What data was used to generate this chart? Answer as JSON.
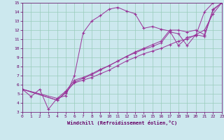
{
  "xlabel": "Windchill (Refroidissement éolien,°C)",
  "bg_color": "#cce8ee",
  "line_color": "#993399",
  "grid_color": "#99ccbb",
  "xlim": [
    0,
    23
  ],
  "ylim": [
    3,
    15
  ],
  "xticks": [
    0,
    1,
    2,
    3,
    4,
    5,
    6,
    7,
    8,
    9,
    10,
    11,
    12,
    13,
    14,
    15,
    16,
    17,
    18,
    19,
    20,
    21,
    22,
    23
  ],
  "yticks": [
    3,
    4,
    5,
    6,
    7,
    8,
    9,
    10,
    11,
    12,
    13,
    14,
    15
  ],
  "line1_x": [
    0,
    1,
    2,
    3,
    4,
    5,
    6,
    7,
    8,
    9,
    10,
    11,
    12,
    13,
    14,
    15,
    16,
    17,
    18,
    19,
    20,
    21,
    22
  ],
  "line1_y": [
    5.5,
    4.7,
    5.5,
    3.3,
    4.5,
    4.8,
    7.0,
    11.7,
    13.0,
    13.6,
    14.3,
    14.5,
    14.1,
    13.8,
    12.2,
    12.4,
    12.1,
    11.9,
    10.3,
    11.2,
    11.4,
    14.0,
    15.0
  ],
  "line2_x": [
    0,
    4,
    5,
    6,
    7,
    8,
    9,
    10,
    11,
    12,
    13,
    14,
    15,
    16,
    17,
    18,
    19,
    20,
    21,
    22,
    23
  ],
  "line2_y": [
    5.5,
    4.3,
    5.2,
    6.2,
    6.5,
    6.8,
    7.2,
    7.6,
    8.1,
    8.6,
    9.0,
    9.4,
    9.7,
    10.0,
    10.4,
    10.8,
    11.0,
    11.5,
    12.0,
    13.8,
    15.0
  ],
  "line3_x": [
    0,
    4,
    5,
    6,
    7,
    8,
    9,
    10,
    11,
    12,
    13,
    14,
    15,
    16,
    17,
    18,
    19,
    20,
    21,
    22,
    23
  ],
  "line3_y": [
    5.5,
    4.5,
    5.3,
    6.5,
    6.8,
    7.2,
    7.7,
    8.1,
    8.6,
    9.1,
    9.5,
    9.9,
    10.2,
    10.6,
    11.8,
    11.6,
    10.3,
    11.5,
    11.3,
    14.2,
    15.0
  ],
  "line4_x": [
    0,
    4,
    5,
    6,
    7,
    8,
    9,
    10,
    11,
    12,
    13,
    14,
    15,
    16,
    17,
    18,
    19,
    20,
    21,
    22,
    23
  ],
  "line4_y": [
    5.5,
    4.3,
    5.1,
    6.3,
    6.7,
    7.1,
    7.6,
    8.1,
    8.6,
    9.1,
    9.6,
    10.0,
    10.4,
    10.8,
    12.0,
    12.0,
    11.8,
    12.0,
    11.5,
    14.3,
    15.0
  ]
}
